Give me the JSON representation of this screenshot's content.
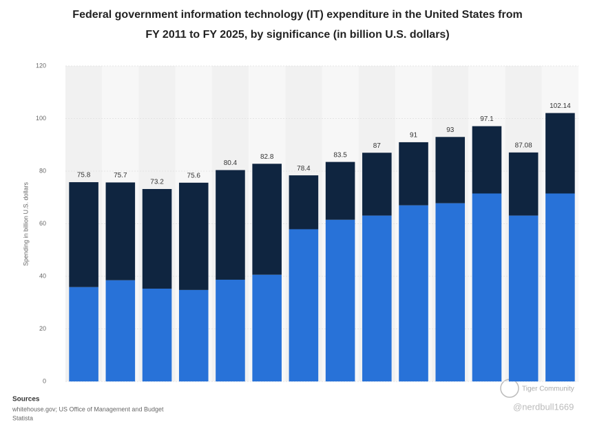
{
  "chart_data": {
    "type": "bar",
    "stacked": true,
    "title": "Federal government information technology (IT) expenditure in the United States from",
    "title_line2": "FY 2011 to FY 2025, by significance (in billion U.S. dollars)",
    "y_label": "Spending in billion U.S. dollars",
    "categories": [
      null,
      null,
      null,
      null,
      null,
      null,
      null,
      null,
      null,
      null,
      null,
      null,
      null,
      null
    ],
    "series": [
      {
        "color": "#2872d8",
        "values": [
          35.9,
          38.5,
          35.3,
          34.8,
          38.7,
          40.6,
          57.9,
          61.5,
          63.1,
          67.0,
          67.8,
          71.5,
          63.1,
          71.5
        ]
      },
      {
        "color": "#0f2540",
        "values": [
          39.9,
          37.2,
          37.9,
          40.8,
          41.7,
          42.2,
          20.5,
          22.0,
          23.9,
          24.0,
          25.2,
          25.6,
          24.0,
          30.6
        ]
      }
    ],
    "totals": [
      75.8,
      75.7,
      73.2,
      75.6,
      80.4,
      82.8,
      78.4,
      83.5,
      87,
      91,
      93,
      97.1,
      87.08,
      102.14
    ],
    "ylim": [
      0,
      120
    ],
    "yticks": [
      0,
      20,
      40,
      60,
      80,
      100,
      120
    ],
    "source_heading": "Sources",
    "source_text": "whitehouse.gov; US Office of Management and Budget",
    "source_site": "Statista",
    "watermark_brand": "Tiger Community",
    "watermark_user": "@nerdbull1669"
  }
}
